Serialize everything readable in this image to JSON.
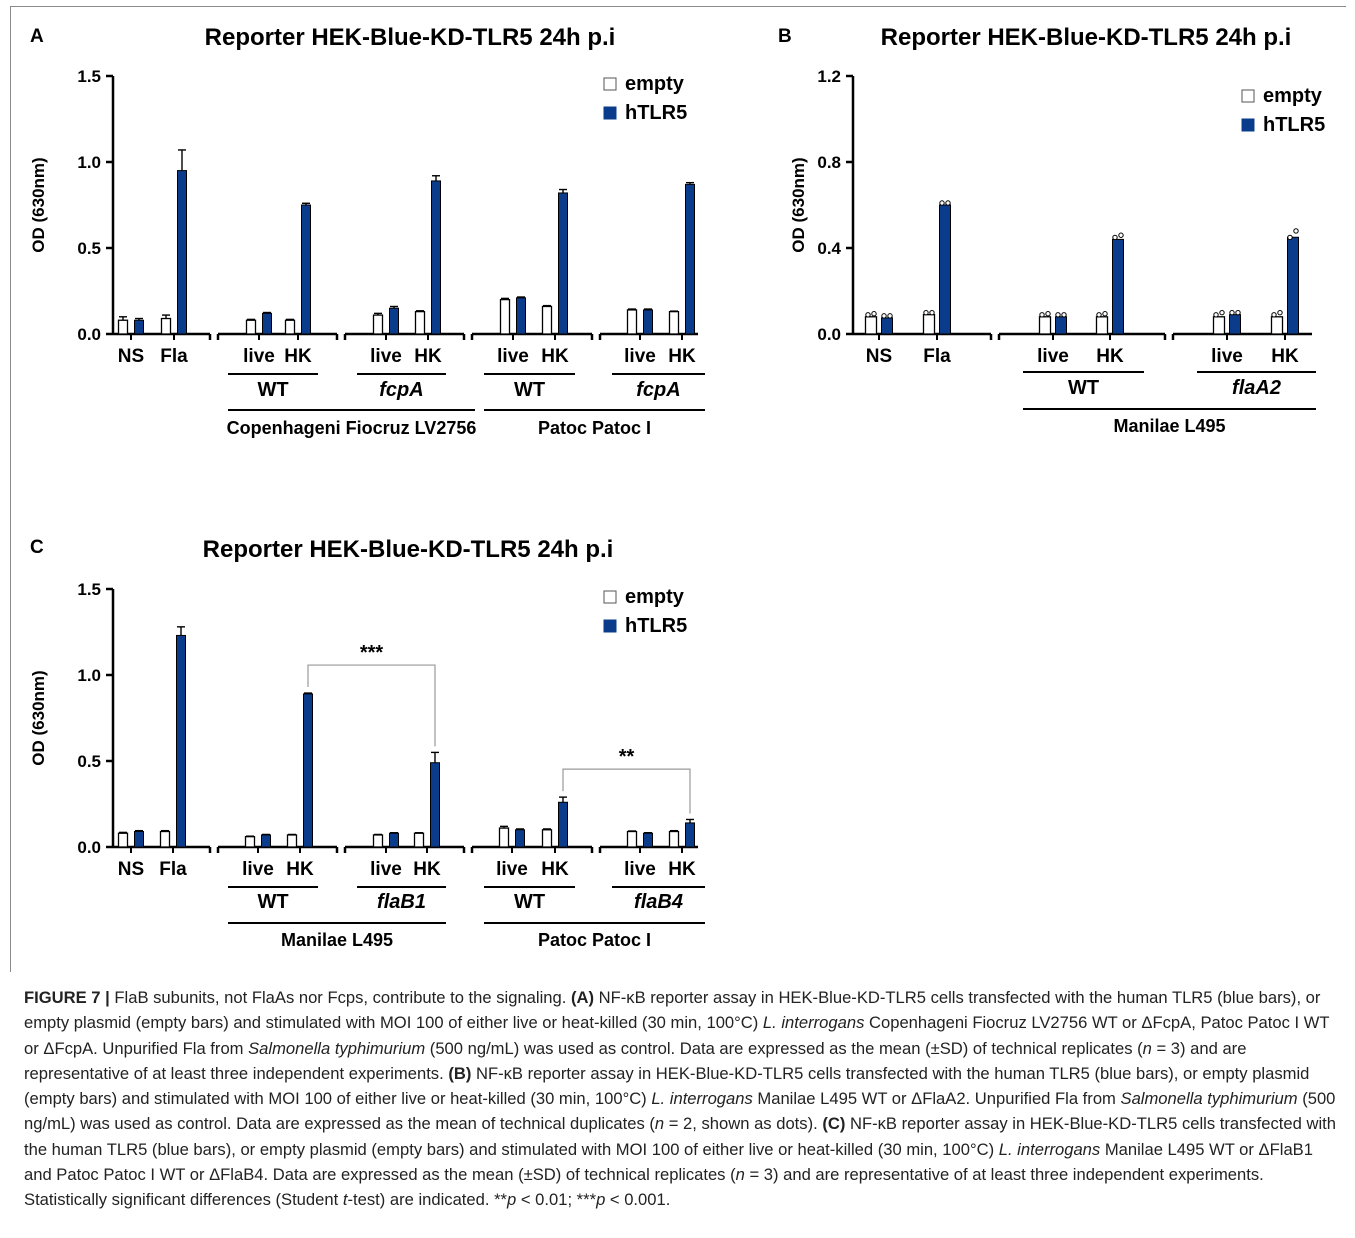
{
  "chart_data": [
    {
      "panel": "A",
      "type": "bar",
      "title": "Reporter HEK-Blue-KD-TLR5 24h p.i",
      "ylabel": "OD (630nm)",
      "ylim": [
        0,
        1.5
      ],
      "yticks": [
        "0.0",
        "0.5",
        "1.0",
        "1.5"
      ],
      "legend_position": "top-right",
      "legend": [
        {
          "label": "empty",
          "color": "#ffffff"
        },
        {
          "label": "hTLR5",
          "color": "#0b3c8c"
        }
      ],
      "categories": [
        "NS",
        "Fla",
        "live",
        "HK",
        "live",
        "HK",
        "live",
        "HK",
        "live",
        "HK"
      ],
      "series": [
        {
          "name": "empty",
          "values": [
            0.08,
            0.09,
            0.08,
            0.08,
            0.11,
            0.13,
            0.2,
            0.16,
            0.14,
            0.13
          ],
          "errors": [
            0.02,
            0.02,
            0.005,
            0.005,
            0.01,
            0.005,
            0.007,
            0.005,
            0.005,
            0.003
          ]
        },
        {
          "name": "hTLR5",
          "values": [
            0.08,
            0.95,
            0.12,
            0.75,
            0.15,
            0.89,
            0.21,
            0.82,
            0.14,
            0.87
          ],
          "errors": [
            0.01,
            0.12,
            0.005,
            0.01,
            0.01,
            0.03,
            0.005,
            0.02,
            0.005,
            0.01
          ]
        }
      ],
      "groups": [
        {
          "label": "WT",
          "italic": false
        },
        {
          "label": "fcpA",
          "italic": true
        },
        {
          "label": "WT",
          "italic": false
        },
        {
          "label": "fcpA",
          "italic": true
        }
      ],
      "strains": [
        "Copenhageni Fiocruz LV2756",
        "Patoc Patoc I"
      ],
      "significance": []
    },
    {
      "panel": "B",
      "type": "bar",
      "title": "Reporter HEK-Blue-KD-TLR5 24h p.i",
      "ylabel": "OD (630nm)",
      "ylim": [
        0,
        1.2
      ],
      "yticks": [
        "0.0",
        "0.4",
        "0.8",
        "1.2"
      ],
      "legend_position": "top-right",
      "legend": [
        {
          "label": "empty",
          "color": "#ffffff"
        },
        {
          "label": "hTLR5",
          "color": "#0b3c8c"
        }
      ],
      "categories": [
        "NS",
        "Fla",
        "live",
        "HK",
        "live",
        "HK"
      ],
      "series": [
        {
          "name": "empty",
          "values": [
            0.08,
            0.09,
            0.08,
            0.08,
            0.08,
            0.08
          ],
          "dots": [
            [
              0.08,
              0.085
            ],
            [
              0.09,
              0.09
            ],
            [
              0.08,
              0.085
            ],
            [
              0.08,
              0.085
            ],
            [
              0.08,
              0.09
            ],
            [
              0.08,
              0.09
            ]
          ]
        },
        {
          "name": "hTLR5",
          "values": [
            0.075,
            0.6,
            0.08,
            0.44,
            0.09,
            0.45
          ],
          "dots": [
            [
              0.075,
              0.075
            ],
            [
              0.6,
              0.6
            ],
            [
              0.08,
              0.08
            ],
            [
              0.44,
              0.45
            ],
            [
              0.09,
              0.09
            ],
            [
              0.44,
              0.47
            ]
          ]
        }
      ],
      "groups": [
        {
          "label": "WT",
          "italic": false
        },
        {
          "label": "flaA2",
          "italic": true
        }
      ],
      "strains": [
        "Manilae L495"
      ],
      "significance": []
    },
    {
      "panel": "C",
      "type": "bar",
      "title": "Reporter HEK-Blue-KD-TLR5 24h p.i",
      "ylabel": "OD (630nm)",
      "ylim": [
        0,
        1.5
      ],
      "yticks": [
        "0.0",
        "0.5",
        "1.0",
        "1.5"
      ],
      "legend_position": "top-right",
      "legend": [
        {
          "label": "empty",
          "color": "#ffffff"
        },
        {
          "label": "hTLR5",
          "color": "#0b3c8c"
        }
      ],
      "categories": [
        "NS",
        "Fla",
        "live",
        "HK",
        "live",
        "HK",
        "live",
        "HK",
        "live",
        "HK"
      ],
      "series": [
        {
          "name": "empty",
          "values": [
            0.08,
            0.09,
            0.06,
            0.07,
            0.07,
            0.08,
            0.11,
            0.1,
            0.09,
            0.09
          ],
          "errors": [
            0.005,
            0.005,
            0.003,
            0.003,
            0.003,
            0.003,
            0.01,
            0.005,
            0.003,
            0.005
          ]
        },
        {
          "name": "hTLR5",
          "values": [
            0.09,
            1.23,
            0.07,
            0.89,
            0.08,
            0.49,
            0.1,
            0.26,
            0.08,
            0.14
          ],
          "errors": [
            0.005,
            0.05,
            0.003,
            0.005,
            0.003,
            0.06,
            0.005,
            0.03,
            0.003,
            0.02
          ]
        }
      ],
      "groups": [
        {
          "label": "WT",
          "italic": false
        },
        {
          "label": "flaB1",
          "italic": true
        },
        {
          "label": "WT",
          "italic": false
        },
        {
          "label": "flaB4",
          "italic": true
        }
      ],
      "strains": [
        "Manilae L495",
        "Patoc Patoc I"
      ],
      "significance": [
        {
          "from_category": 3,
          "to_category": 5,
          "label": "***"
        },
        {
          "from_category": 7,
          "to_category": 9,
          "label": "**"
        }
      ]
    }
  ],
  "caption": {
    "figure_label": "FIGURE 7 |",
    "segments": [
      {
        "t": " FlaB subunits, not FlaAs nor Fcps, contribute to the signaling. ",
        "s": "n"
      },
      {
        "t": "(A)",
        "s": "b"
      },
      {
        "t": " NF-κB reporter assay in HEK-Blue-KD-TLR5 cells transfected with the human TLR5 (blue bars), or empty plasmid (empty bars) and stimulated with MOI 100 of either live or heat-killed (30 min, 100°C) ",
        "s": "n"
      },
      {
        "t": "L. interrogans",
        "s": "i"
      },
      {
        "t": " Copenhageni Fiocruz LV2756 WT or ΔFcpA, Patoc Patoc I WT or ΔFcpA. Unpurified Fla from ",
        "s": "n"
      },
      {
        "t": "Salmonella typhimurium",
        "s": "i"
      },
      {
        "t": " (500 ng/mL) was used as control. Data are expressed as the mean (±SD) of technical replicates (",
        "s": "n"
      },
      {
        "t": "n",
        "s": "i"
      },
      {
        "t": " = 3) and are representative of at least three independent experiments. ",
        "s": "n"
      },
      {
        "t": "(B)",
        "s": "b"
      },
      {
        "t": " NF-κB reporter assay in HEK-Blue-KD-TLR5 cells transfected with the human TLR5 (blue bars), or empty plasmid (empty bars) and stimulated with MOI 100 of either live or heat-killed (30 min, 100°C) ",
        "s": "n"
      },
      {
        "t": "L. interrogans",
        "s": "i"
      },
      {
        "t": " Manilae L495 WT or ΔFlaA2. Unpurified Fla from ",
        "s": "n"
      },
      {
        "t": "Salmonella typhimurium",
        "s": "i"
      },
      {
        "t": " (500 ng/mL) was used as control. Data are expressed as the mean of technical duplicates (",
        "s": "n"
      },
      {
        "t": "n",
        "s": "i"
      },
      {
        "t": " = 2, shown as dots). ",
        "s": "n"
      },
      {
        "t": "(C)",
        "s": "b"
      },
      {
        "t": " NF-κB reporter assay in HEK-Blue-KD-TLR5 cells transfected with the human TLR5 (blue bars), or empty plasmid (empty bars) and stimulated with MOI 100 of either live or heat-killed (30 min, 100°C) ",
        "s": "n"
      },
      {
        "t": "L. interrogans",
        "s": "i"
      },
      {
        "t": " Manilae L495 WT or ΔFlaB1 and Patoc Patoc I WT or ΔFlaB4. Data are expressed as the mean (±SD) of technical replicates (",
        "s": "n"
      },
      {
        "t": "n",
        "s": "i"
      },
      {
        "t": " = 3) and are representative of at least three independent experiments. Statistically significant differences (Student ",
        "s": "n"
      },
      {
        "t": "t",
        "s": "i"
      },
      {
        "t": "-test) are indicated. **",
        "s": "n"
      },
      {
        "t": "p",
        "s": "i"
      },
      {
        "t": " < 0.01; ***",
        "s": "n"
      },
      {
        "t": "p",
        "s": "i"
      },
      {
        "t": " < 0.001.",
        "s": "n"
      }
    ]
  }
}
